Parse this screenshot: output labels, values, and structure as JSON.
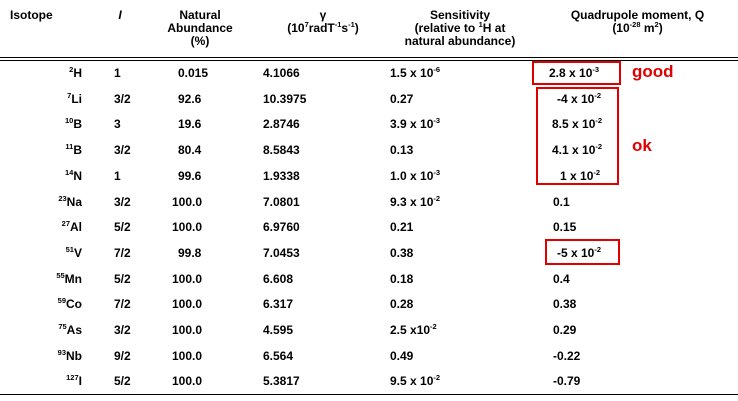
{
  "headers": {
    "isotope": "Isotope",
    "spin": "I",
    "abundance": [
      "Natural",
      "Abundance",
      "(%)"
    ],
    "gamma": {
      "symbol": "γ",
      "open": "(10",
      "exp1": "7",
      "mid": "radT",
      "exp2": "-1",
      "mid2": "s",
      "exp3": "-1",
      "close": ")"
    },
    "sensitivity": {
      "l1": "Sensitivity",
      "l2a": "(relative to ",
      "l2sup": "1",
      "l2b": "H at",
      "l3": "natural abundance)"
    },
    "quadrupole": {
      "l1": "Quadrupole moment, Q",
      "open": "(10",
      "exp1": "-28",
      "mid": " m",
      "exp2": "2",
      "close": ")"
    }
  },
  "rows": [
    {
      "mass": "2",
      "sym": "H",
      "spin": "1",
      "abundance": "0.015",
      "gamma": "4.1066",
      "sens": {
        "base": "1.5 x 10",
        "exp": "-6"
      },
      "q": {
        "base": "2.8 x 10",
        "exp": "-3"
      }
    },
    {
      "mass": "7",
      "sym": "Li",
      "spin": "3/2",
      "abundance": "92.6",
      "gamma": "10.3975",
      "sens": {
        "base": "0.27",
        "exp": ""
      },
      "q": {
        "base": "-4 x 10",
        "exp": "-2"
      }
    },
    {
      "mass": "10",
      "sym": "B",
      "spin": "3",
      "abundance": "19.6",
      "gamma": "2.8746",
      "sens": {
        "base": "3.9 x 10",
        "exp": "-3"
      },
      "q": {
        "base": "8.5 x 10",
        "exp": "-2"
      }
    },
    {
      "mass": "11",
      "sym": "B",
      "spin": "3/2",
      "abundance": "80.4",
      "gamma": "8.5843",
      "sens": {
        "base": "0.13",
        "exp": ""
      },
      "q": {
        "base": "4.1 x 10",
        "exp": "-2"
      }
    },
    {
      "mass": "14",
      "sym": "N",
      "spin": "1",
      "abundance": "99.6",
      "gamma": "1.9338",
      "sens": {
        "base": "1.0 x 10",
        "exp": "-3"
      },
      "q": {
        "base": "1 x 10",
        "exp": "-2"
      }
    },
    {
      "mass": "23",
      "sym": "Na",
      "spin": "3/2",
      "abundance": "100.0",
      "gamma": "7.0801",
      "sens": {
        "base": "9.3 x 10",
        "exp": "-2"
      },
      "q": {
        "base": "0.1",
        "exp": ""
      }
    },
    {
      "mass": "27",
      "sym": "Al",
      "spin": "5/2",
      "abundance": "100.0",
      "gamma": "6.9760",
      "sens": {
        "base": "0.21",
        "exp": ""
      },
      "q": {
        "base": "0.15",
        "exp": ""
      }
    },
    {
      "mass": "51",
      "sym": "V",
      "spin": "7/2",
      "abundance": "99.8",
      "gamma": "7.0453",
      "sens": {
        "base": "0.38",
        "exp": ""
      },
      "q": {
        "base": "-5 x 10",
        "exp": "-2"
      }
    },
    {
      "mass": "55",
      "sym": "Mn",
      "spin": "5/2",
      "abundance": "100.0",
      "gamma": "6.608",
      "sens": {
        "base": "0.18",
        "exp": ""
      },
      "q": {
        "base": "0.4",
        "exp": ""
      }
    },
    {
      "mass": "59",
      "sym": "Co",
      "spin": "7/2",
      "abundance": "100.0",
      "gamma": "6.317",
      "sens": {
        "base": "0.28",
        "exp": ""
      },
      "q": {
        "base": "0.38",
        "exp": ""
      }
    },
    {
      "mass": "75",
      "sym": "As",
      "spin": "3/2",
      "abundance": "100.0",
      "gamma": "4.595",
      "sens": {
        "base": "2.5 x10",
        "exp": "-2"
      },
      "q": {
        "base": "0.29",
        "exp": ""
      }
    },
    {
      "mass": "93",
      "sym": "Nb",
      "spin": "9/2",
      "abundance": "100.0",
      "gamma": "6.564",
      "sens": {
        "base": "0.49",
        "exp": ""
      },
      "q": {
        "base": "-0.22",
        "exp": ""
      }
    },
    {
      "mass": "127",
      "sym": "I",
      "spin": "5/2",
      "abundance": "100.0",
      "gamma": "5.3817",
      "sens": {
        "base": "9.5 x 10",
        "exp": "-2"
      },
      "q": {
        "base": "-0.79",
        "exp": ""
      }
    }
  ],
  "annotations": {
    "good": "good",
    "ok": "ok",
    "color": "#e00000"
  }
}
